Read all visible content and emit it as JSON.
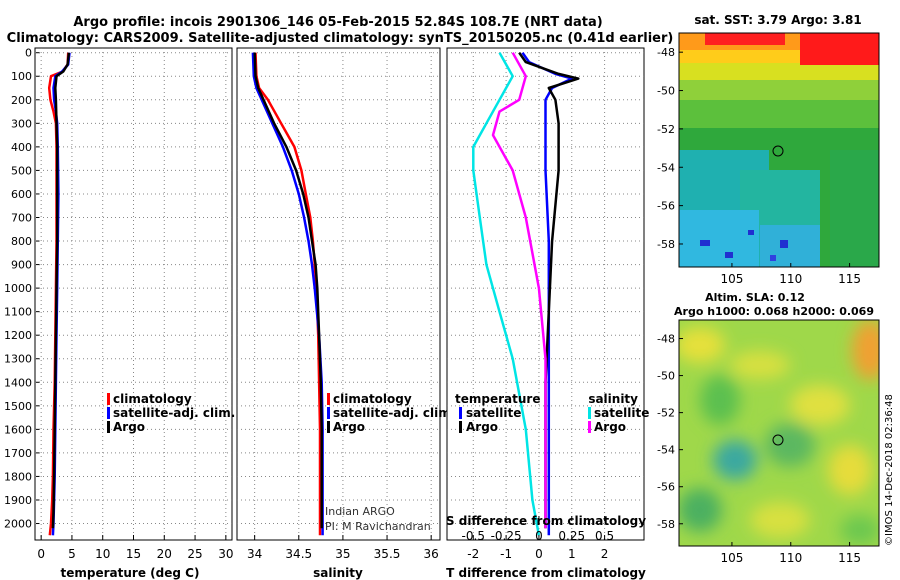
{
  "title_line1": "Argo profile: incois 2901306_146 05-Feb-2015 52.84S 108.7E (NRT data)",
  "title_line2": "Climatology: CARS2009. Satellite-adjusted climatology: synTS_20150205.nc (0.41d earlier)",
  "colors": {
    "climatology": "#ff0000",
    "satellite": "#0000ff",
    "argo": "#000000",
    "sat_salinity": "#00e5e5",
    "argo_salinity": "#ff00ff"
  },
  "chart_data": [
    {
      "type": "line",
      "id": "temperature",
      "xlabel": "temperature (deg C)",
      "ylabel": "",
      "xlim": [
        -1,
        31
      ],
      "ylim": [
        2070,
        -20
      ],
      "xticks": [
        0,
        5,
        10,
        15,
        20,
        25,
        30
      ],
      "yticks": [
        0,
        100,
        200,
        300,
        400,
        500,
        600,
        700,
        800,
        900,
        1000,
        1100,
        1200,
        1300,
        1400,
        1500,
        1600,
        1700,
        1800,
        1900,
        2000
      ],
      "legend": [
        "climatology",
        "satellite-adj. clim.",
        "Argo"
      ],
      "series": [
        {
          "name": "climatology",
          "color": "#ff0000",
          "x": [
            4.4,
            4.3,
            3.5,
            1.6,
            1.3,
            1.5,
            2.0,
            2.4,
            2.5,
            2.5,
            2.5,
            2.4,
            2.3,
            2.2,
            2.0,
            1.9,
            1.8,
            1.6,
            1.4
          ],
          "y": [
            0,
            50,
            80,
            100,
            150,
            200,
            250,
            300,
            400,
            600,
            800,
            1000,
            1200,
            1400,
            1600,
            1800,
            1900,
            2000,
            2050
          ]
        },
        {
          "name": "satellite-adj. clim.",
          "color": "#0000ff",
          "x": [
            4.6,
            4.4,
            3.4,
            2.3,
            2.0,
            2.1,
            2.4,
            2.6,
            2.7,
            2.8,
            2.7,
            2.6,
            2.5,
            2.4,
            2.3,
            2.2,
            2.1,
            2.0,
            1.9
          ],
          "y": [
            0,
            50,
            80,
            100,
            150,
            200,
            250,
            300,
            400,
            600,
            800,
            1000,
            1200,
            1400,
            1600,
            1800,
            1900,
            2000,
            2050
          ]
        },
        {
          "name": "Argo",
          "color": "#000000",
          "x": [
            4.5,
            4.3,
            3.6,
            2.5,
            2.3,
            2.4,
            2.5,
            2.6,
            2.6,
            2.6,
            2.5,
            2.4,
            2.3,
            2.2,
            2.1,
            2.0,
            1.9
          ],
          "y": [
            0,
            50,
            80,
            100,
            150,
            200,
            300,
            400,
            600,
            800,
            1000,
            1200,
            1400,
            1600,
            1800,
            1950,
            2020
          ]
        }
      ]
    },
    {
      "type": "line",
      "id": "salinity",
      "xlabel": "salinity",
      "ylabel": "",
      "xlim": [
        33.8,
        36.1
      ],
      "ylim": [
        2070,
        -20
      ],
      "xticks": [
        34,
        34.5,
        35,
        35.5,
        36
      ],
      "xtick_labels": [
        "34",
        "34.5",
        "35",
        "35.5",
        "36"
      ],
      "legend": [
        "climatology",
        "satellite-adj. clim.",
        "Argo"
      ],
      "annotations": [
        "Indian ARGO",
        "PI: M Ravichandran"
      ],
      "series": [
        {
          "name": "climatology",
          "color": "#ff0000",
          "x": [
            34.01,
            34.02,
            34.05,
            34.15,
            34.3,
            34.45,
            34.53,
            34.58,
            34.63,
            34.66,
            34.68,
            34.7,
            34.72,
            34.73,
            34.74,
            34.74,
            34.74
          ],
          "y": [
            0,
            100,
            150,
            200,
            300,
            400,
            500,
            600,
            700,
            800,
            900,
            1000,
            1200,
            1400,
            1600,
            1800,
            2050
          ]
        },
        {
          "name": "satellite-adj. clim.",
          "color": "#0000ff",
          "x": [
            33.98,
            33.99,
            34.02,
            34.08,
            34.2,
            34.32,
            34.42,
            34.5,
            34.56,
            34.61,
            34.65,
            34.68,
            34.73,
            34.76,
            34.77,
            34.77,
            34.77
          ],
          "y": [
            0,
            100,
            150,
            200,
            300,
            400,
            500,
            600,
            700,
            800,
            900,
            1000,
            1200,
            1400,
            1600,
            1800,
            2050
          ]
        },
        {
          "name": "Argo",
          "color": "#000000",
          "x": [
            34.0,
            34.01,
            34.04,
            34.1,
            34.22,
            34.36,
            34.47,
            34.55,
            34.61,
            34.65,
            34.69,
            34.71,
            34.73,
            34.75,
            34.76,
            34.76,
            34.76
          ],
          "y": [
            0,
            100,
            150,
            200,
            300,
            400,
            500,
            600,
            700,
            800,
            900,
            1000,
            1200,
            1400,
            1600,
            1800,
            2020
          ]
        }
      ]
    },
    {
      "type": "line",
      "id": "difference",
      "xlabel": "T difference from climatology",
      "top_axis_label": "S difference from climatology",
      "xlim": [
        -2.8,
        3.2
      ],
      "ylim": [
        2070,
        -20
      ],
      "xticks": [
        -2,
        -1,
        0,
        1,
        2
      ],
      "xtick_labels": [
        "-2",
        "-1",
        "0",
        "1",
        "2"
      ],
      "top_ticks": [
        -0.5,
        -0.25,
        0,
        0.25,
        0.5
      ],
      "top_tick_labels": [
        "-0.5",
        "-0.25",
        "0",
        "0.25",
        "0.5"
      ],
      "legend_temperature_title": "temperature",
      "legend_salinity_title": "salinity",
      "legend_temperature": [
        "satellite",
        "Argo"
      ],
      "legend_salinity": [
        "satellite",
        "Argo"
      ],
      "series": [
        {
          "name": "T satellite",
          "color": "#0000ff",
          "x": [
            -0.5,
            -0.3,
            0.5,
            1.0,
            0.4,
            0.2,
            0.2,
            0.2,
            0.3,
            0.3,
            0.3,
            0.3,
            0.3,
            0.3
          ],
          "y": [
            0,
            40,
            90,
            110,
            150,
            200,
            300,
            500,
            800,
            1100,
            1400,
            1700,
            1900,
            2050
          ]
        },
        {
          "name": "T Argo",
          "color": "#000000",
          "x": [
            -0.6,
            -0.4,
            0.6,
            1.2,
            0.3,
            0.5,
            0.6,
            0.6,
            0.4,
            0.3,
            0.2,
            0.2,
            0.2,
            0.2
          ],
          "y": [
            0,
            40,
            90,
            110,
            150,
            200,
            300,
            500,
            800,
            1100,
            1400,
            1700,
            1900,
            2020
          ]
        },
        {
          "name": "S satellite",
          "color": "#00e5e5",
          "x": [
            -0.3,
            -0.2,
            -0.3,
            -0.4,
            -0.5,
            -0.5,
            -0.45,
            -0.4,
            -0.3,
            -0.2,
            -0.1,
            -0.05,
            0.0
          ],
          "y": [
            0,
            100,
            200,
            300,
            400,
            500,
            700,
            900,
            1100,
            1300,
            1600,
            1900,
            2050
          ]
        },
        {
          "name": "S Argo",
          "color": "#ff00ff",
          "x": [
            -0.2,
            -0.1,
            -0.15,
            -0.3,
            -0.35,
            -0.2,
            -0.1,
            0.0,
            0.05,
            0.05,
            0.05
          ],
          "y": [
            0,
            100,
            200,
            250,
            350,
            500,
            700,
            1000,
            1300,
            1700,
            2020
          ]
        }
      ]
    },
    {
      "type": "heatmap",
      "id": "sst_map",
      "title": "sat. SST: 3.79 Argo: 3.81",
      "xlim": [
        100.5,
        117.5
      ],
      "ylim": [
        -59.2,
        -47
      ],
      "xticks": [
        105,
        110,
        115
      ],
      "yticks": [
        -48,
        -50,
        -52,
        -54,
        -56,
        -58
      ],
      "argo_position": {
        "lon": 108.7,
        "lat": -52.84
      }
    },
    {
      "type": "heatmap",
      "id": "sla_map",
      "title": "Altim. SLA: 0.12",
      "subtitle": "Argo h1000: 0.068 h2000: 0.069",
      "xlim": [
        100.5,
        117.5
      ],
      "ylim": [
        -59.2,
        -47
      ],
      "xticks": [
        105,
        110,
        115
      ],
      "yticks": [
        -48,
        -50,
        -52,
        -54,
        -56,
        -58
      ],
      "argo_position": {
        "lon": 108.7,
        "lat": -52.84
      }
    }
  ],
  "watermark": "©IMOS 14-Dec-2018 02:36:48"
}
